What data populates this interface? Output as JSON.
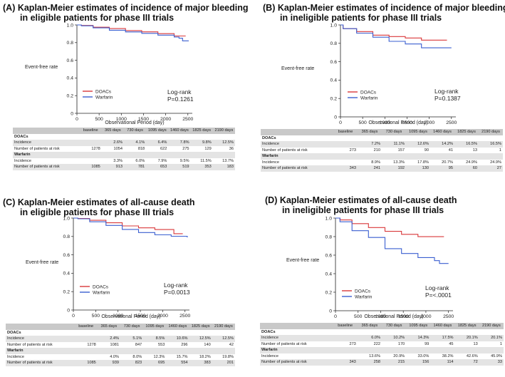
{
  "colors": {
    "doacs": "#d9383a",
    "warfarin": "#3a5fd0",
    "axis": "#222222",
    "table_header": "#c9c9c9",
    "table_shade": "#e4e4e4"
  },
  "table_headers": [
    "baseline",
    "365 days",
    "730 days",
    "1095 days",
    "1460 days",
    "1825 days",
    "2190 days"
  ],
  "panels": [
    {
      "title_line1": "(A) Kaplan-Meier estimates of incidence of major bleeding",
      "title_line2": "in eligible patients for phase III trials",
      "stat_label": "Log-rank",
      "p_value": "P=0.1261",
      "risk_table": {
        "doacs_label": "DOACs",
        "warfarin_label": "Warfarin",
        "incidence_label": "Incidence",
        "at_risk_label": "Number of patients at risk",
        "doacs_incidence": [
          "",
          "2.6%",
          "4.1%",
          "6.4%",
          "7.8%",
          "9.8%",
          "12.5%"
        ],
        "doacs_at_risk": [
          "1278",
          "1054",
          "818",
          "622",
          "275",
          "129",
          "36"
        ],
        "warfarin_incidence": [
          "",
          "3.3%",
          "6.0%",
          "7.9%",
          "9.5%",
          "11.5%",
          "13.7%"
        ],
        "warfarin_at_risk": [
          "1085",
          "913",
          "781",
          "653",
          "519",
          "353",
          "183"
        ]
      }
    },
    {
      "title_line1": "(B) Kaplan-Meier estimates of incidence of major bleeding",
      "title_line2": "in ineligible patients for phase III trials",
      "stat_label": "Log-rank",
      "p_value": "P=0.1387",
      "risk_table": {
        "doacs_label": "DOACs",
        "warfarin_label": "Warfarin",
        "incidence_label": "Incidence",
        "at_risk_label": "Number of patients at risk",
        "doacs_incidence": [
          "",
          "7.2%",
          "11.1%",
          "12.6%",
          "14.2%",
          "16.5%",
          "16.5%"
        ],
        "doacs_at_risk": [
          "273",
          "210",
          "157",
          "90",
          "41",
          "13",
          "1"
        ],
        "warfarin_incidence": [
          "",
          "8.9%",
          "13.3%",
          "17.8%",
          "20.7%",
          "24.9%",
          "24.9%"
        ],
        "warfarin_at_risk": [
          "343",
          "241",
          "192",
          "130",
          "95",
          "60",
          "27"
        ]
      }
    },
    {
      "title_line1": "(C) Kaplan-Meier estimates of all-cause death",
      "title_line2": "in eligible patients for phase III trials",
      "stat_label": "Log-rank",
      "p_value": "P=0.0013",
      "risk_table": {
        "doacs_label": "DOACs",
        "warfarin_label": "Warfarin",
        "incidence_label": "Incidence",
        "at_risk_label": "Number of patients at risk",
        "doacs_incidence": [
          "",
          "2.4%",
          "5.1%",
          "8.5%",
          "10.6%",
          "12.5%",
          "12.5%"
        ],
        "doacs_at_risk": [
          "1278",
          "1081",
          "847",
          "553",
          "296",
          "140",
          "42"
        ],
        "warfarin_incidence": [
          "",
          "4.0%",
          "8.0%",
          "12.3%",
          "15.7%",
          "18.2%",
          "19.8%"
        ],
        "warfarin_at_risk": [
          "1085",
          "939",
          "823",
          "695",
          "554",
          "383",
          "201"
        ]
      }
    },
    {
      "title_line1": "(D) Kaplan-Meier estimates of all-cause death",
      "title_line2": "in ineligible patients for phase III trials",
      "stat_label": "Log-rank",
      "p_value": "P=<.0001",
      "risk_table": {
        "doacs_label": "DOACs",
        "warfarin_label": "Warfarin",
        "incidence_label": "Incidence",
        "at_risk_label": "Number of patients at risk",
        "doacs_incidence": [
          "",
          "6.0%",
          "10.2%",
          "14.3%",
          "17.5%",
          "20.1%",
          "20.1%"
        ],
        "doacs_at_risk": [
          "273",
          "222",
          "170",
          "99",
          "45",
          "13",
          "1"
        ],
        "warfarin_incidence": [
          "",
          "13.6%",
          "20.9%",
          "33.0%",
          "38.2%",
          "42.6%",
          "45.9%"
        ],
        "warfarin_at_risk": [
          "343",
          "258",
          "215",
          "156",
          "114",
          "72",
          "33"
        ]
      }
    }
  ],
  "chart_data": [
    {
      "type": "line",
      "title": "(A) Kaplan-Meier estimates of incidence of major bleeding in eligible patients for phase III trials",
      "xlabel": "Observational Period (day)",
      "ylabel": "Event-free rate",
      "xlim": [
        0,
        2600
      ],
      "ylim": [
        0,
        1.0
      ],
      "xticks": [
        0,
        500,
        1000,
        1500,
        2000,
        2500
      ],
      "yticks": [
        0,
        0.2,
        0.4,
        0.6,
        0.8,
        1.0
      ],
      "ytick_labels": [
        "0",
        "0.2",
        "0.4",
        "0.6",
        "0.8",
        "1.0"
      ],
      "legend": [
        "DOACs",
        "Warfarin"
      ],
      "series": [
        {
          "name": "DOACs",
          "x": [
            0,
            100,
            365,
            730,
            1095,
            1460,
            1825,
            2190,
            2300,
            2450
          ],
          "y": [
            1.0,
            0.994,
            0.974,
            0.959,
            0.936,
            0.922,
            0.902,
            0.875,
            0.875,
            0.875
          ]
        },
        {
          "name": "Warfarin",
          "x": [
            0,
            100,
            365,
            730,
            1095,
            1460,
            1825,
            2190,
            2300,
            2380,
            2520
          ],
          "y": [
            1.0,
            0.99,
            0.967,
            0.94,
            0.921,
            0.905,
            0.885,
            0.863,
            0.85,
            0.82,
            0.82
          ]
        }
      ]
    },
    {
      "type": "line",
      "title": "(B) Kaplan-Meier estimates of incidence of major bleeding in ineligible patients for phase III trials",
      "xlabel": "Observational Period (day)",
      "ylabel": "Event-free rate",
      "xlim": [
        0,
        2600
      ],
      "ylim": [
        0,
        1.0
      ],
      "xticks": [
        0,
        500,
        1000,
        1500,
        2000,
        2500
      ],
      "yticks": [
        0,
        0.2,
        0.4,
        0.6,
        0.8,
        1.0
      ],
      "ytick_labels": [
        "0",
        "0.2",
        "0.4",
        "0.6",
        "0.8",
        "1.0"
      ],
      "legend": [
        "DOACs",
        "Warfarin"
      ],
      "series": [
        {
          "name": "DOACs",
          "x": [
            0,
            60,
            365,
            730,
            1095,
            1460,
            1825,
            2190,
            2400
          ],
          "y": [
            1.0,
            0.96,
            0.928,
            0.889,
            0.874,
            0.858,
            0.835,
            0.835,
            0.835
          ]
        },
        {
          "name": "Warfarin",
          "x": [
            0,
            60,
            365,
            730,
            1095,
            1460,
            1825,
            2190,
            2500
          ],
          "y": [
            1.0,
            0.96,
            0.911,
            0.867,
            0.822,
            0.793,
            0.751,
            0.751,
            0.751
          ]
        }
      ]
    },
    {
      "type": "line",
      "title": "(C) Kaplan-Meier estimates of all-cause death in eligible patients for phase III trials",
      "xlabel": "Observational Period (day)",
      "ylabel": "Event-free rate",
      "xlim": [
        0,
        2600
      ],
      "ylim": [
        0,
        1.0
      ],
      "xticks": [
        0,
        500,
        1000,
        1500,
        2000,
        2500
      ],
      "yticks": [
        0,
        0.2,
        0.4,
        0.6,
        0.8,
        1.0
      ],
      "ytick_labels": [
        "0",
        "0.2",
        "0.4",
        "0.6",
        "0.8",
        "1.0"
      ],
      "legend": [
        "DOACs",
        "Warfarin"
      ],
      "series": [
        {
          "name": "DOACs",
          "x": [
            0,
            100,
            365,
            730,
            1095,
            1460,
            1825,
            2190,
            2250,
            2450
          ],
          "y": [
            1.0,
            0.995,
            0.976,
            0.949,
            0.915,
            0.894,
            0.875,
            0.875,
            0.83,
            0.83
          ]
        },
        {
          "name": "Warfarin",
          "x": [
            0,
            100,
            365,
            730,
            1095,
            1460,
            1825,
            2190,
            2550
          ],
          "y": [
            1.0,
            0.992,
            0.96,
            0.92,
            0.877,
            0.843,
            0.818,
            0.802,
            0.79
          ]
        }
      ]
    },
    {
      "type": "line",
      "title": "(D) Kaplan-Meier estimates of all-cause death in ineligible patients for phase III trials",
      "xlabel": "Observational Period (day)",
      "ylabel": "Event-free rate",
      "xlim": [
        0,
        2600
      ],
      "ylim": [
        0,
        1.0
      ],
      "xticks": [
        0,
        500,
        1000,
        1500,
        2000,
        2500
      ],
      "yticks": [
        0,
        0.2,
        0.4,
        0.6,
        0.8,
        1.0
      ],
      "ytick_labels": [
        "0",
        "0.2",
        "0.4",
        "0.6",
        "0.8",
        "1.0"
      ],
      "legend": [
        "DOACs",
        "Warfarin"
      ],
      "series": [
        {
          "name": "DOACs",
          "x": [
            0,
            100,
            365,
            730,
            1095,
            1460,
            1825,
            2190,
            2400
          ],
          "y": [
            1.0,
            0.98,
            0.94,
            0.898,
            0.857,
            0.825,
            0.799,
            0.799,
            0.799
          ]
        },
        {
          "name": "Warfarin",
          "x": [
            0,
            100,
            365,
            730,
            1095,
            1460,
            1825,
            2190,
            2300,
            2500
          ],
          "y": [
            1.0,
            0.96,
            0.864,
            0.791,
            0.67,
            0.618,
            0.574,
            0.541,
            0.51,
            0.51
          ]
        }
      ]
    }
  ]
}
